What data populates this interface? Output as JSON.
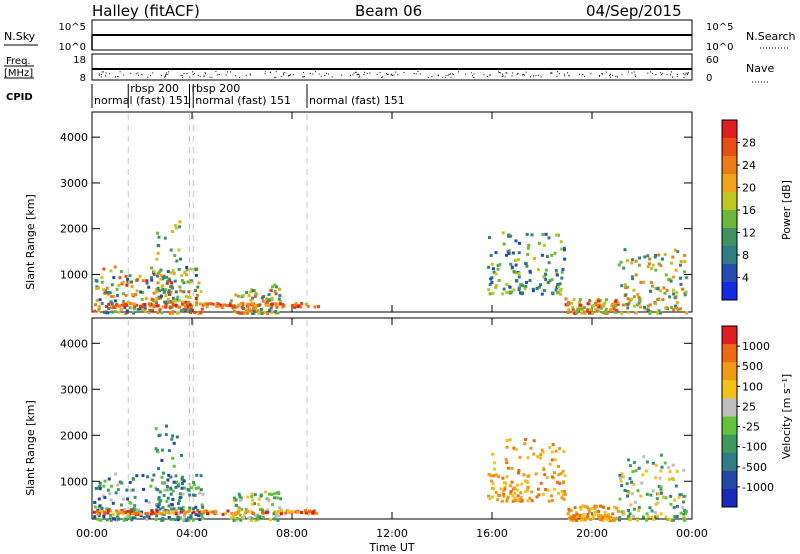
{
  "header": {
    "title": "Halley (fitACF)",
    "beam": "Beam 06",
    "date": "04/Sep/2015"
  },
  "top_panels": {
    "nsky": {
      "label": "N.Sky",
      "right_label": "N.Search",
      "left_ticks": [
        "10^5",
        "10^0"
      ],
      "right_ticks": [
        "10^5",
        "10^0"
      ]
    },
    "freq": {
      "label_line1": "Freq.",
      "label_line2": "[MHz]",
      "right_label": "Nave",
      "left_ticks": [
        "18",
        "8"
      ],
      "right_ticks": [
        "60",
        "0"
      ]
    },
    "cpid": {
      "label": "CPID",
      "segments": [
        {
          "text": "normal (fast) 151",
          "start_hour": 0.0
        },
        {
          "text": "rbsp 200",
          "start_hour": 1.45
        },
        {
          "text": "rbsp 200",
          "start_hour": 3.9
        },
        {
          "text": "normal (fast) 151",
          "start_hour": 4.05
        },
        {
          "text": "normal (fast) 151",
          "start_hour": 8.6
        }
      ]
    }
  },
  "chart_data": [
    {
      "type": "scatter",
      "title": "",
      "xlabel": "Time UT",
      "ylabel": "Slant Range [km]",
      "xlim": [
        0,
        24
      ],
      "ylim": [
        180,
        4550
      ],
      "x_ticks": [
        "00:00",
        "04:00",
        "08:00",
        "12:00",
        "16:00",
        "20:00",
        "00:00"
      ],
      "y_ticks": [
        "1000",
        "2000",
        "3000",
        "4000"
      ],
      "colorbar": {
        "label": "Power [dB]",
        "range": [
          0,
          32
        ],
        "ticks": [
          "4",
          "8",
          "12",
          "16",
          "20",
          "24",
          "28"
        ],
        "colors": [
          "#1428e6",
          "#1f4fb0",
          "#2e7e84",
          "#3e9360",
          "#6ab83c",
          "#bcc81f",
          "#f0a218",
          "#ef7a18",
          "#e94d14",
          "#e01e1e"
        ]
      },
      "scatter_regions": [
        {
          "t": [
            0.0,
            4.4
          ],
          "r": [
            180,
            1200
          ],
          "level": [
            1,
            9
          ]
        },
        {
          "t": [
            2.4,
            3.6
          ],
          "r": [
            400,
            2300
          ],
          "level": [
            2,
            6
          ]
        },
        {
          "t": [
            5.5,
            7.5
          ],
          "r": [
            180,
            800
          ],
          "level": [
            2,
            8
          ]
        },
        {
          "t": [
            15.8,
            18.9
          ],
          "r": [
            600,
            1950
          ],
          "level": [
            1,
            5
          ]
        },
        {
          "t": [
            18.9,
            21.0
          ],
          "r": [
            180,
            500
          ],
          "level": [
            4,
            9
          ]
        },
        {
          "t": [
            21.0,
            23.8
          ],
          "r": [
            180,
            1600
          ],
          "level": [
            2,
            7
          ]
        }
      ]
    },
    {
      "type": "scatter",
      "title": "",
      "xlabel": "Time UT",
      "ylabel": "Slant Range [km]",
      "xlim": [
        0,
        24
      ],
      "ylim": [
        180,
        4550
      ],
      "x_ticks": [
        "00:00",
        "04:00",
        "08:00",
        "12:00",
        "16:00",
        "20:00",
        "00:00"
      ],
      "y_ticks": [
        "1000",
        "2000",
        "3000",
        "4000"
      ],
      "colorbar": {
        "label": "Velocity [m s⁻¹]",
        "ticks": [
          "1000",
          "500",
          "100",
          "25",
          "-25",
          "-100",
          "-500",
          "-1000"
        ],
        "colors": [
          "#1a2ab8",
          "#2347a6",
          "#2e7e84",
          "#3c9a5c",
          "#62c43a",
          "#bfbfbf",
          "#f2c21a",
          "#f09a15",
          "#ee6a12",
          "#e01e1e"
        ]
      },
      "scatter_regions": [
        {
          "t": [
            0.0,
            4.4
          ],
          "r": [
            180,
            1200
          ],
          "level": [
            1,
            5
          ]
        },
        {
          "t": [
            2.4,
            3.6
          ],
          "r": [
            400,
            2300
          ],
          "level": [
            1,
            4
          ]
        },
        {
          "t": [
            5.5,
            7.5
          ],
          "r": [
            180,
            800
          ],
          "level": [
            3,
            6
          ]
        },
        {
          "t": [
            15.8,
            18.9
          ],
          "r": [
            600,
            1950
          ],
          "level": [
            6,
            8
          ]
        },
        {
          "t": [
            18.9,
            21.0
          ],
          "r": [
            180,
            500
          ],
          "level": [
            6,
            8
          ]
        },
        {
          "t": [
            21.0,
            23.8
          ],
          "r": [
            180,
            1600
          ],
          "level": [
            2,
            6
          ]
        }
      ]
    }
  ]
}
